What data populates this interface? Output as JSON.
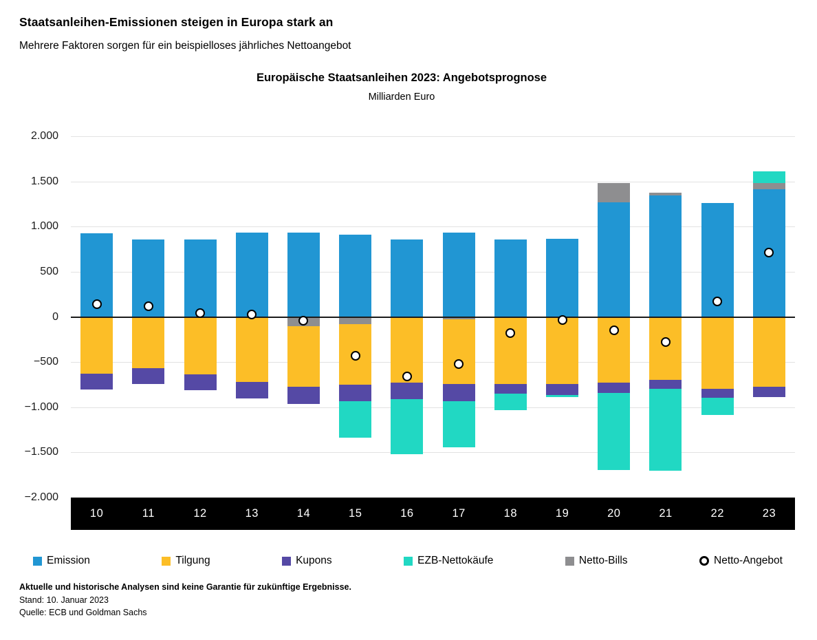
{
  "header": {
    "title": "Staatsanleihen-Emissionen steigen in Europa stark an",
    "subtitle": "Mehrere Faktoren sorgen für ein beispielloses jährliches Nettoangebot"
  },
  "chart": {
    "title": "Europäische Staatsanleihen 2023: Angebotsprognose",
    "subtitle": "Milliarden Euro"
  },
  "chart_data": {
    "type": "bar",
    "stacked": true,
    "title": "Europäische Staatsanleihen 2023: Angebotsprognose",
    "ylabel_units": "Milliarden Euro",
    "categories": [
      "10",
      "11",
      "12",
      "13",
      "14",
      "15",
      "16",
      "17",
      "18",
      "19",
      "20",
      "21",
      "22",
      "23"
    ],
    "series": [
      {
        "name": "Emission",
        "color": "#2196D3",
        "values": [
          925,
          855,
          855,
          935,
          930,
          910,
          860,
          930,
          860,
          865,
          1265,
          1345,
          1260,
          1410
        ]
      },
      {
        "name": "Tilgung",
        "color": "#FCBE27",
        "values": [
          -630,
          -565,
          -635,
          -720,
          -670,
          -670,
          -730,
          -720,
          -740,
          -740,
          -725,
          -700,
          -795,
          -775
        ]
      },
      {
        "name": "Kupons",
        "color": "#5549A5",
        "values": [
          -170,
          -175,
          -175,
          -185,
          -185,
          -185,
          -180,
          -185,
          -110,
          -125,
          -115,
          -95,
          -100,
          -110
        ]
      },
      {
        "name": "EZB-Nettokäufe",
        "color": "#21D8C3",
        "values": [
          0,
          0,
          0,
          0,
          0,
          -400,
          -610,
          -510,
          -180,
          -25,
          -855,
          -905,
          -190,
          130
        ]
      },
      {
        "name": "Netto-Bills",
        "color": "#8E8E90",
        "values": [
          0,
          0,
          0,
          0,
          -105,
          -80,
          0,
          -25,
          0,
          0,
          220,
          30,
          0,
          75
        ]
      }
    ],
    "marker_series": {
      "name": "Netto-Angebot",
      "fill": "#FFFFFF",
      "border": "#000000",
      "values": [
        140,
        120,
        45,
        30,
        -40,
        -430,
        -660,
        -520,
        -180,
        -35,
        -150,
        -280,
        170,
        710
      ]
    },
    "pos_order": [
      "Emission",
      "Netto-Bills",
      "EZB-Nettokäufe"
    ],
    "neg_order": [
      "Netto-Bills",
      "Tilgung",
      "Kupons",
      "EZB-Nettokäufe"
    ],
    "ylim": [
      -2000,
      2000
    ],
    "ytick_values": [
      2000,
      1500,
      1000,
      500,
      0,
      -500,
      -1000,
      -1500,
      -2000
    ],
    "ytick_labels": [
      "2.000",
      "1.500",
      "1.000",
      "500",
      "0",
      "−500",
      "−1.000",
      "−1.500",
      "−2.000"
    ],
    "grid": true,
    "legend_position": "bottom"
  },
  "footer": {
    "disclaimer": "Aktuelle und historische Analysen sind keine Garantie für zukünftige Ergebnisse.",
    "as_of": "Stand: 10. Januar 2023",
    "source": "Quelle: ECB und Goldman Sachs"
  },
  "style": {
    "background": "#FFFFFF",
    "text_color": "#000000",
    "grid_color": "#E2E2E2",
    "zero_line_color": "#1A1A1A",
    "axis_band_bg": "#000000",
    "axis_band_text": "#FFFFFF"
  }
}
